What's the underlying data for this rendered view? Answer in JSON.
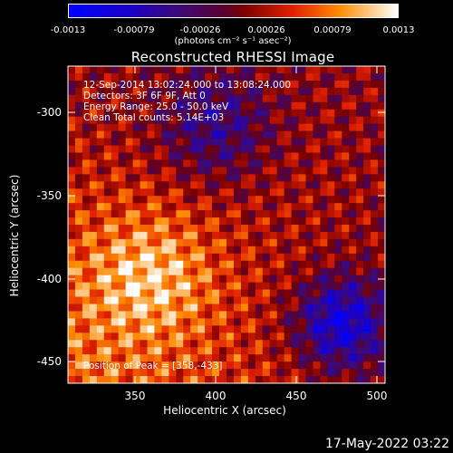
{
  "colorbar": {
    "ticks": [
      "-0.0013",
      "-0.00079",
      "-0.00026",
      "0.00026",
      "0.00079",
      "0.0013"
    ],
    "units_label": "(photons cm⁻² s⁻¹ asec⁻²)"
  },
  "title": "Reconstructed RHESSI Image",
  "image_info": {
    "line1": "12-Sep-2014 13:02:24.000 to 13:08:24.000",
    "line2": "Detectors: 3F 6F 9F, Att 0",
    "line3": "Energy Range: 25.0 - 50.0 keV",
    "line4": "Clean     Total counts: 5.14E+03"
  },
  "peak_text": "Position of Peak = [358,-433]",
  "axes": {
    "xlabel": "Heliocentric X (arcsec)",
    "ylabel": "Heliocentric Y (arcsec)",
    "xticks": [
      "350",
      "400",
      "450",
      "500"
    ],
    "yticks": [
      "-300",
      "-350",
      "-400",
      "-450"
    ]
  },
  "timestamp": "17-May-2022 03:22"
}
